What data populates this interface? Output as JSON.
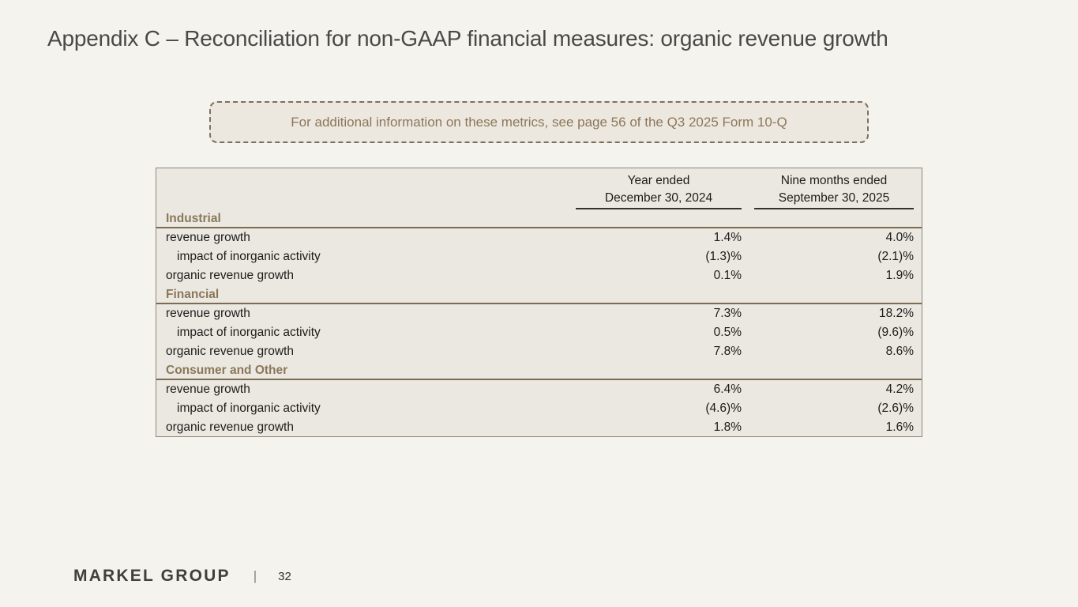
{
  "title": "Appendix C – Reconciliation for non-GAAP financial measures: organic revenue growth",
  "callout": {
    "text": "For additional information on these metrics, see page 56 of the Q3 2025 Form 10-Q"
  },
  "table": {
    "columns": [
      {
        "line1": "Year ended",
        "line2": "December 30, 2024"
      },
      {
        "line1": "Nine months ended",
        "line2": "September 30, 2025"
      }
    ],
    "sections": [
      {
        "name": "Industrial",
        "rows": [
          {
            "label": "revenue growth",
            "values": [
              "1.4%",
              "4.0%"
            ]
          },
          {
            "label": "impact of inorganic activity",
            "values": [
              "(1.3)%",
              "(2.1)%"
            ]
          },
          {
            "label": "organic revenue growth",
            "values": [
              "0.1%",
              "1.9%"
            ]
          }
        ]
      },
      {
        "name": "Financial",
        "rows": [
          {
            "label": "revenue growth",
            "values": [
              "7.3%",
              "18.2%"
            ]
          },
          {
            "label": "impact of inorganic activity",
            "values": [
              "0.5%",
              "(9.6)%"
            ]
          },
          {
            "label": "organic revenue growth",
            "values": [
              "7.8%",
              "8.6%"
            ]
          }
        ]
      },
      {
        "name": "Consumer and Other",
        "rows": [
          {
            "label": "revenue growth",
            "values": [
              "6.4%",
              "4.2%"
            ]
          },
          {
            "label": "impact of inorganic activity",
            "values": [
              "(4.6)%",
              "(2.6)%"
            ]
          },
          {
            "label": "organic revenue growth",
            "values": [
              "1.8%",
              "1.6%"
            ]
          }
        ]
      }
    ]
  },
  "footer": {
    "brand": "MARKEL GROUP",
    "divider": "|",
    "page_number": "32"
  },
  "colors": {
    "page_background": "#f5f3ee",
    "panel_background": "#ebe8e1",
    "accent_brown": "#8a7758",
    "section_rule_brown": "#7c6b50",
    "body_text": "#1d1c1a",
    "title_text": "#4b4946"
  }
}
